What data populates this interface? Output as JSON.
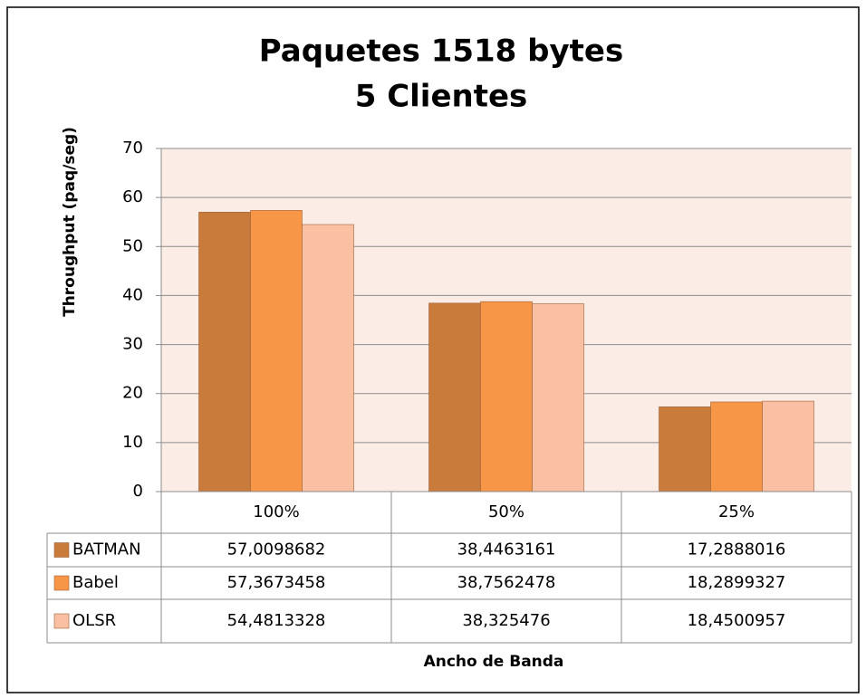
{
  "chart_data": {
    "type": "bar",
    "title_lines": [
      "Paquetes 1518 bytes",
      "5 Clientes"
    ],
    "y_label": "Throughput (paq/seg)",
    "x_label": "Ancho de Banda",
    "categories": [
      "100%",
      "50%",
      "25%"
    ],
    "series": [
      {
        "name": "BATMAN",
        "color": "#c87b3a",
        "values": [
          57.0098682,
          38.4463161,
          17.2888016
        ],
        "value_labels": [
          "57,0098682",
          "38,4463161",
          "17,2888016"
        ]
      },
      {
        "name": "Babel",
        "color": "#f79646",
        "values": [
          57.3673458,
          38.7562478,
          18.2899327
        ],
        "value_labels": [
          "57,3673458",
          "38,7562478",
          "18,2899327"
        ]
      },
      {
        "name": "OLSR",
        "color": "#fac0a4",
        "values": [
          54.4813328,
          38.325476,
          18.4500957
        ],
        "value_labels": [
          "54,4813328",
          "38,325476",
          "18,4500957"
        ]
      }
    ],
    "ylim": [
      0,
      70
    ],
    "yticks": [
      0,
      10,
      20,
      30,
      40,
      50,
      60,
      70
    ],
    "grid": true,
    "plot_background": "#fbece6"
  }
}
